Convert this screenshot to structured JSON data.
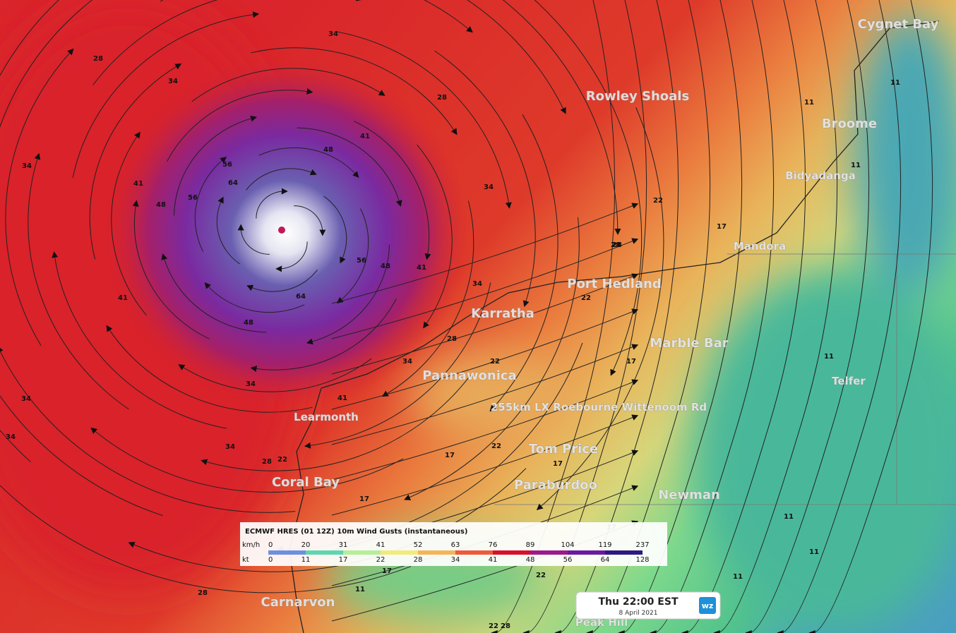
{
  "map": {
    "places": [
      "Cygnet Bay",
      "Rowley Shoals",
      "Broome",
      "Bidyadanga",
      "Mandora",
      "Port Hedland",
      "Karratha",
      "Marble Bar",
      "Telfer",
      "Pannawonica",
      "255km LX Roebourne Wittenoom Rd",
      "Learmonth",
      "Tom Price",
      "Coral Bay",
      "Paraburdoo",
      "Newman",
      "Carnarvon",
      "Peak Hill"
    ],
    "contour_labels": [
      28,
      34,
      34,
      28,
      34,
      41,
      48,
      56,
      64,
      41,
      48,
      56,
      34,
      41,
      64,
      48,
      56,
      48,
      41,
      34,
      41,
      34,
      28,
      22,
      28,
      34,
      34,
      28,
      28,
      22,
      22,
      22,
      17,
      17,
      17,
      17,
      11,
      11,
      11,
      11,
      11,
      11,
      22,
      17,
      17,
      11,
      28,
      22,
      34,
      22,
      28,
      34,
      17,
      11
    ]
  },
  "legend": {
    "title": "ECMWF HRES (01 12Z) 10m Wind Gusts (instantaneous)",
    "units": [
      "km/h",
      "kt"
    ],
    "kmh": [
      0,
      20,
      31,
      41,
      52,
      63,
      76,
      89,
      104,
      119,
      237
    ],
    "kt": [
      0,
      11,
      17,
      22,
      28,
      34,
      41,
      48,
      56,
      64,
      128
    ]
  },
  "timestamp": {
    "time": "Thu 22:00 EST",
    "date": "8 April 2021",
    "logo": "wz"
  }
}
